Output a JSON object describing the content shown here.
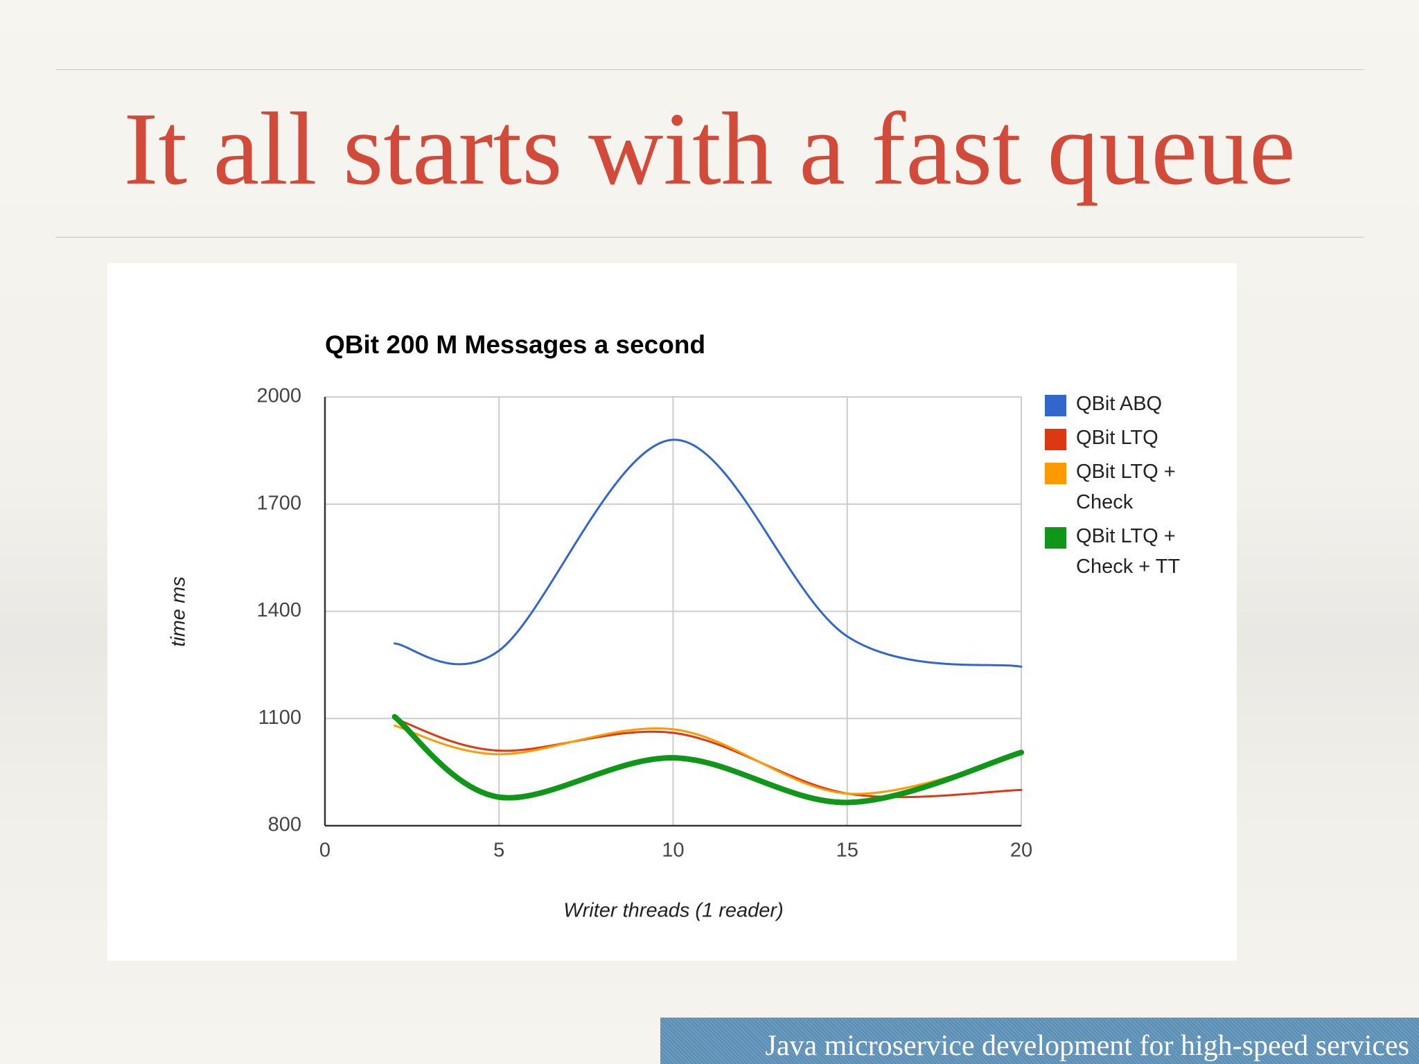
{
  "title": "It all starts with a fast queue",
  "footer": "Java microservice development for high-speed services",
  "chart_data": {
    "type": "line",
    "title": "QBit 200 M Messages a second",
    "x_label": "Writer threads (1 reader)",
    "y_label": "time ms",
    "x": [
      2,
      5,
      10,
      15,
      20
    ],
    "series": [
      {
        "name": "QBit ABQ",
        "color": "#3366cc",
        "line_width": 3,
        "values": [
          1310,
          1290,
          1880,
          1330,
          1245
        ]
      },
      {
        "name": "QBit LTQ",
        "color": "#dc3912",
        "line_width": 3,
        "values": [
          1100,
          1010,
          1060,
          890,
          900
        ]
      },
      {
        "name": "QBit LTQ + Check",
        "color": "#ff9900",
        "line_width": 3,
        "values": [
          1080,
          1000,
          1070,
          890,
          1000
        ]
      },
      {
        "name": "QBit LTQ + Check + TT",
        "color": "#109618",
        "line_width": 8,
        "values": [
          1105,
          880,
          990,
          865,
          1005
        ]
      }
    ],
    "xlim": [
      0,
      20
    ],
    "xticks": [
      0,
      5,
      10,
      15,
      20
    ],
    "ylim": [
      800,
      2000
    ],
    "yticks": [
      800,
      1100,
      1400,
      1700,
      2000
    ],
    "grid": true,
    "smooth": true,
    "legend": "right"
  }
}
